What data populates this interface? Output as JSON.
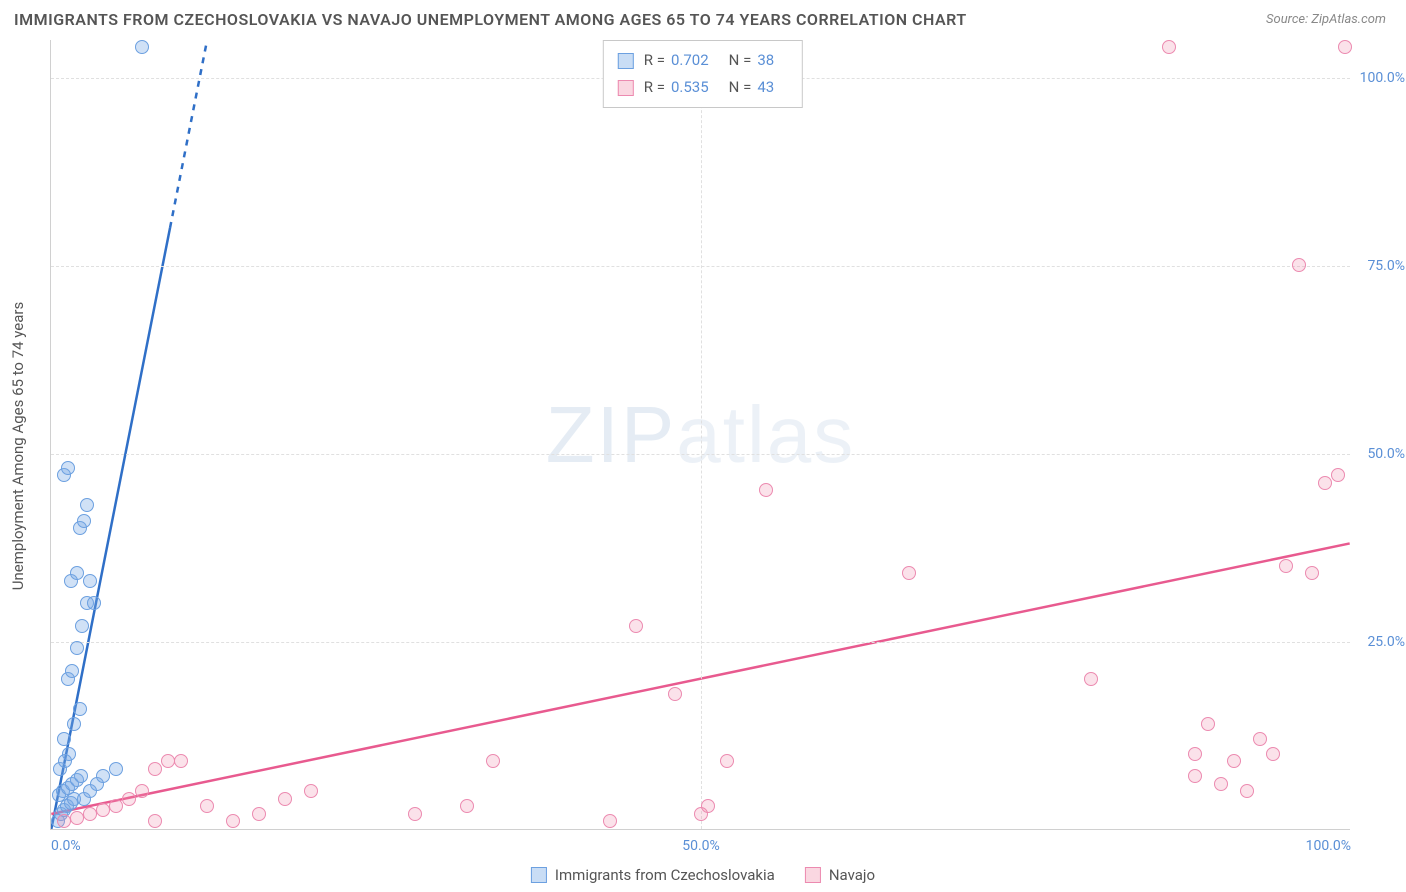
{
  "title": "IMMIGRANTS FROM CZECHOSLOVAKIA VS NAVAJO UNEMPLOYMENT AMONG AGES 65 TO 74 YEARS CORRELATION CHART",
  "source": "Source: ZipAtlas.com",
  "watermark_bold": "ZIP",
  "watermark_thin": "atlas",
  "y_axis_label": "Unemployment Among Ages 65 to 74 years",
  "chart": {
    "type": "scatter",
    "xlim": [
      0,
      100
    ],
    "ylim": [
      0,
      105
    ],
    "x_ticks": [
      0,
      50,
      100
    ],
    "y_ticks": [
      25,
      50,
      75,
      100
    ],
    "x_tick_labels": [
      "0.0%",
      "50.0%",
      "100.0%"
    ],
    "y_tick_labels": [
      "25.0%",
      "50.0%",
      "75.0%",
      "100.0%"
    ],
    "grid_color": "#e0e0e0",
    "background_color": "#ffffff",
    "series": [
      {
        "name": "Immigrants from Czechoslovakia",
        "color_fill": "rgba(120,170,230,0.35)",
        "color_stroke": "#6ca0e0",
        "marker_radius": 7,
        "R": "0.702",
        "N": "38",
        "trend": {
          "x1": 0,
          "y1": 0,
          "x2": 12,
          "y2": 105,
          "solid_until_y": 80,
          "color": "#2f6fc7",
          "width": 2.5
        },
        "points": [
          [
            0.5,
            1
          ],
          [
            0.8,
            2
          ],
          [
            1,
            2.5
          ],
          [
            1.2,
            3
          ],
          [
            1.5,
            3.5
          ],
          [
            1.8,
            4
          ],
          [
            0.6,
            4.5
          ],
          [
            0.9,
            5
          ],
          [
            1.3,
            5.5
          ],
          [
            1.6,
            6
          ],
          [
            2,
            6.5
          ],
          [
            2.3,
            7
          ],
          [
            0.7,
            8
          ],
          [
            1.1,
            9
          ],
          [
            1.4,
            10
          ],
          [
            2.5,
            4
          ],
          [
            3,
            5
          ],
          [
            3.5,
            6
          ],
          [
            4,
            7
          ],
          [
            1,
            12
          ],
          [
            1.8,
            14
          ],
          [
            2.2,
            16
          ],
          [
            1.3,
            20
          ],
          [
            1.6,
            21
          ],
          [
            2,
            24
          ],
          [
            2.4,
            27
          ],
          [
            2.8,
            30
          ],
          [
            1.5,
            33
          ],
          [
            2,
            34
          ],
          [
            2.2,
            40
          ],
          [
            2.5,
            41
          ],
          [
            2.8,
            43
          ],
          [
            1,
            47
          ],
          [
            1.3,
            48
          ],
          [
            3,
            33
          ],
          [
            3.3,
            30
          ],
          [
            7,
            104
          ],
          [
            5,
            8
          ]
        ]
      },
      {
        "name": "Navajo",
        "color_fill": "rgba(240,140,170,0.25)",
        "color_stroke": "#ec8ab0",
        "marker_radius": 7,
        "R": "0.535",
        "N": "43",
        "trend": {
          "x1": 0,
          "y1": 2,
          "x2": 100,
          "y2": 38,
          "color": "#e85a8f",
          "width": 2.5
        },
        "points": [
          [
            1,
            1
          ],
          [
            2,
            1.5
          ],
          [
            3,
            2
          ],
          [
            4,
            2.5
          ],
          [
            5,
            3
          ],
          [
            6,
            4
          ],
          [
            7,
            5
          ],
          [
            8,
            8
          ],
          [
            9,
            9
          ],
          [
            10,
            9
          ],
          [
            12,
            3
          ],
          [
            14,
            1
          ],
          [
            16,
            2
          ],
          [
            8,
            1
          ],
          [
            18,
            4
          ],
          [
            20,
            5
          ],
          [
            28,
            2
          ],
          [
            32,
            3
          ],
          [
            34,
            9
          ],
          [
            43,
            1
          ],
          [
            45,
            27
          ],
          [
            48,
            18
          ],
          [
            50,
            2
          ],
          [
            50.5,
            3
          ],
          [
            52,
            9
          ],
          [
            55,
            45
          ],
          [
            66,
            34
          ],
          [
            80,
            20
          ],
          [
            86,
            104
          ],
          [
            88,
            7
          ],
          [
            88,
            10
          ],
          [
            89,
            14
          ],
          [
            90,
            6
          ],
          [
            91,
            9
          ],
          [
            92,
            5
          ],
          [
            93,
            12
          ],
          [
            94,
            10
          ],
          [
            95,
            35
          ],
          [
            96,
            75
          ],
          [
            97,
            34
          ],
          [
            98,
            46
          ],
          [
            99,
            47
          ],
          [
            99.5,
            104
          ]
        ]
      }
    ]
  },
  "bottom_legend": [
    {
      "swatch": "blue",
      "label": "Immigrants from Czechoslovakia"
    },
    {
      "swatch": "pink",
      "label": "Navajo"
    }
  ]
}
